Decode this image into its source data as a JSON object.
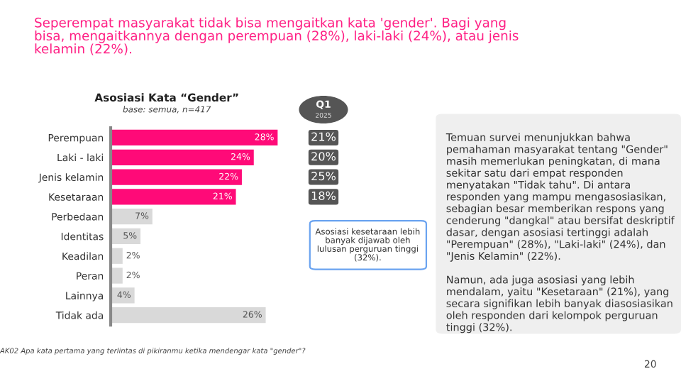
{
  "chart_data": {
    "type": "bar",
    "orientation": "horizontal",
    "title": "Seperempat masyarakat tidak bisa mengaitkan kata 'gender'. Bagi yang\nbisa, mengaitkannya dengan perempuan (28%), laki-laki (24%), atau jenis\nkelamin (22%).",
    "subtitle": "Asosiasi Kata “Gender”",
    "categories": [
      "Perempuan",
      "Laki - laki",
      "Jenis kelamin",
      "Kesetaraan",
      "Perbedaan",
      "Identitas",
      "Keadilan",
      "Peran",
      "Lainnya",
      "Tidak ada"
    ],
    "values": [
      28,
      24,
      22,
      21,
      7,
      5,
      2,
      2,
      4,
      26
    ],
    "colors": [
      "#ff0a78",
      "#ff0a78",
      "#ff0a78",
      "#ff0a78",
      "#d9d9d9",
      "#d9d9d9",
      "#d9d9d9",
      "#d9d9d9",
      "#d9d9d9",
      "#d9d9d9"
    ],
    "value_labels": [
      "28%",
      "24%",
      "22%",
      "21%",
      "7%",
      "5%",
      "2%",
      "2%",
      "4%",
      "26%"
    ],
    "tick_labels": "y",
    "grid": false,
    "legend": false,
    "annotations": [
      {
        "text": "base: semua, n=417"
      },
      {
        "text": "Q1"
      },
      {
        "text": "2025"
      },
      "21%",
      "20%",
      "25%",
      "18%",
      {
        "text": "Asosiasi kesetaraan lebih\nbanyak dijawab oleh\nlulusan perguruan tinggi\n(32%)."
      },
      {
        "text": "Temuan survei menunjukkan bahwa\npemahaman masyarakat tentang \"Gender\"\nmasih memerlukan peningkatan, di mana\nsekitar satu dari empat responden\nmenyatakan \"Tidak tahu\". Di antara\nresponden yang mampu mengasosiasikan,\nsebagian besar memberikan respons yang\ncenderung \"dangkal\" atau bersifat deskriptif\ndasar, dengan asosiasi tertinggi adalah\n\"Perempuan\" (28%), \"Laki-laki\" (24%), dan\n\"Jenis Kelamin\" (22%).\n\nNamun, ada juga asosiasi yang lebih\nmendalam, yaitu \"Kesetaraan\" (21%), yang\nsecara signifikan lebih banyak diasosiasikan\noleh responden dari kelompok perguruan\ntinggi (32%)."
      },
      {
        "text": "AK02 Apa kata pertama yang terlintas di pikiranmu ketika mendengar kata \"gender\"?"
      },
      {
        "text": "20"
      }
    ]
  }
}
